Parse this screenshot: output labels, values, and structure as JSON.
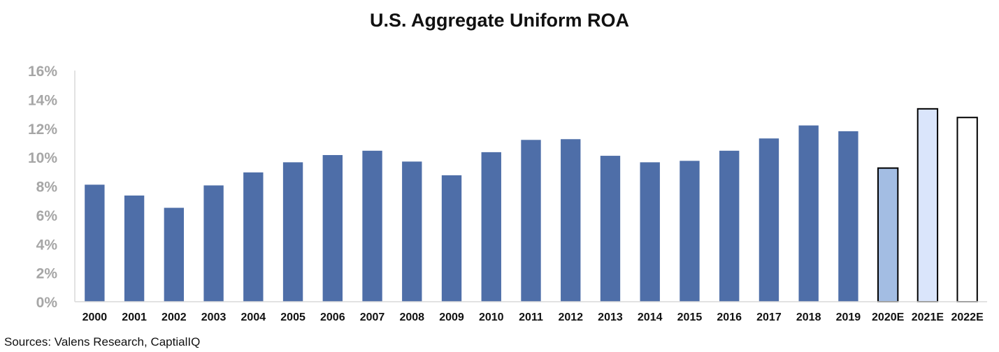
{
  "chart_data": {
    "type": "bar",
    "title": "U.S. Aggregate Uniform ROA",
    "xlabel": "",
    "ylabel": "",
    "ylim": [
      0,
      16
    ],
    "yticks": [
      "0%",
      "2%",
      "4%",
      "6%",
      "8%",
      "10%",
      "12%",
      "14%",
      "16%"
    ],
    "grid": false,
    "categories": [
      "2000",
      "2001",
      "2002",
      "2003",
      "2004",
      "2005",
      "2006",
      "2007",
      "2008",
      "2009",
      "2010",
      "2011",
      "2012",
      "2013",
      "2014",
      "2015",
      "2016",
      "2017",
      "2018",
      "2019",
      "2020E",
      "2021E",
      "2022E"
    ],
    "values": [
      8.1,
      7.35,
      6.5,
      8.05,
      8.95,
      9.65,
      10.15,
      10.45,
      9.7,
      8.75,
      10.35,
      11.2,
      11.25,
      10.1,
      9.65,
      9.75,
      10.45,
      11.3,
      12.2,
      11.8,
      9.25,
      13.35,
      12.75
    ],
    "bar_colors": [
      "#4e6ea8",
      "#4e6ea8",
      "#4e6ea8",
      "#4e6ea8",
      "#4e6ea8",
      "#4e6ea8",
      "#4e6ea8",
      "#4e6ea8",
      "#4e6ea8",
      "#4e6ea8",
      "#4e6ea8",
      "#4e6ea8",
      "#4e6ea8",
      "#4e6ea8",
      "#4e6ea8",
      "#4e6ea8",
      "#4e6ea8",
      "#4e6ea8",
      "#4e6ea8",
      "#4e6ea8",
      "#a3bde3",
      "#dae5fb",
      "#ffffff"
    ],
    "source": "Sources: Valens Research,  CaptialIQ"
  }
}
